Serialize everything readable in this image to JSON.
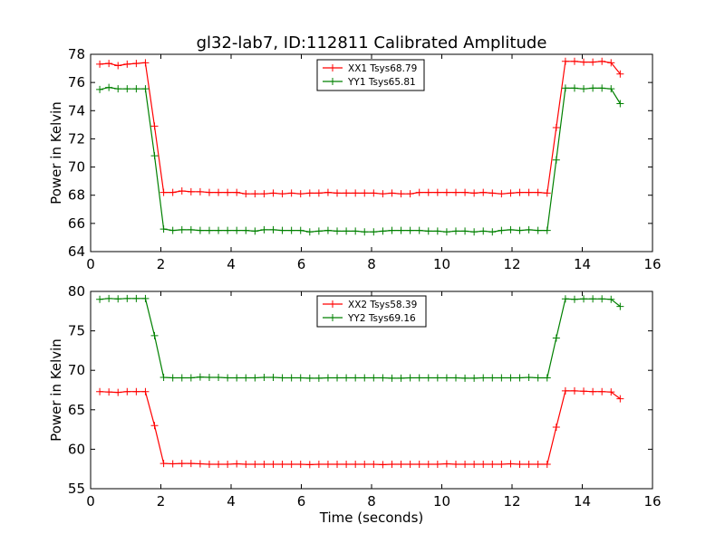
{
  "figure": {
    "title": "gl32-lab7, ID:112811 Calibrated Amplitude"
  },
  "chart_data": [
    {
      "type": "line",
      "title": "gl32-lab7, ID:112811 Calibrated Amplitude",
      "xlabel": "",
      "ylabel": "Power in Kelvin",
      "xlim": [
        0,
        16
      ],
      "ylim": [
        64,
        78
      ],
      "xticks": [
        "0",
        "2",
        "4",
        "6",
        "8",
        "10",
        "12",
        "14",
        "16"
      ],
      "yticks": [
        "64",
        "66",
        "68",
        "70",
        "72",
        "74",
        "76",
        "78"
      ],
      "grid": false,
      "legend": "top-center",
      "marker": "plus",
      "x": [
        0.26,
        0.52,
        0.78,
        1.04,
        1.3,
        1.56,
        1.82,
        2.08,
        2.34,
        2.6,
        2.86,
        3.12,
        3.38,
        3.64,
        3.9,
        4.16,
        4.42,
        4.68,
        4.94,
        5.2,
        5.46,
        5.72,
        5.98,
        6.24,
        6.5,
        6.76,
        7.02,
        7.28,
        7.54,
        7.8,
        8.06,
        8.32,
        8.58,
        8.84,
        9.1,
        9.36,
        9.62,
        9.88,
        10.14,
        10.4,
        10.66,
        10.92,
        11.18,
        11.44,
        11.7,
        11.96,
        12.22,
        12.48,
        12.74,
        13.0,
        13.26,
        13.52,
        13.78,
        14.04,
        14.3,
        14.56,
        14.82,
        15.08
      ],
      "series": [
        {
          "name": "XX1 Tsys68.79",
          "color": "#ff0000",
          "values": [
            77.3,
            77.35,
            77.2,
            77.3,
            77.35,
            77.4,
            72.9,
            68.2,
            68.2,
            68.3,
            68.25,
            68.25,
            68.2,
            68.2,
            68.2,
            68.2,
            68.1,
            68.1,
            68.1,
            68.15,
            68.1,
            68.15,
            68.1,
            68.15,
            68.15,
            68.2,
            68.15,
            68.15,
            68.15,
            68.15,
            68.15,
            68.1,
            68.15,
            68.1,
            68.1,
            68.2,
            68.2,
            68.2,
            68.2,
            68.2,
            68.2,
            68.15,
            68.2,
            68.15,
            68.1,
            68.15,
            68.2,
            68.2,
            68.2,
            68.15,
            72.8,
            77.5,
            77.5,
            77.45,
            77.45,
            77.5,
            77.4,
            76.6
          ]
        },
        {
          "name": "YY1 Tsys65.81",
          "color": "#008000",
          "values": [
            75.5,
            75.65,
            75.55,
            75.55,
            75.55,
            75.55,
            70.8,
            65.6,
            65.5,
            65.55,
            65.55,
            65.5,
            65.5,
            65.5,
            65.5,
            65.5,
            65.5,
            65.45,
            65.55,
            65.55,
            65.5,
            65.5,
            65.5,
            65.4,
            65.45,
            65.5,
            65.45,
            65.45,
            65.45,
            65.4,
            65.4,
            65.45,
            65.5,
            65.5,
            65.5,
            65.5,
            65.45,
            65.45,
            65.4,
            65.45,
            65.45,
            65.4,
            65.45,
            65.4,
            65.5,
            65.55,
            65.5,
            65.55,
            65.5,
            65.5,
            70.5,
            75.6,
            75.6,
            75.55,
            75.6,
            75.6,
            75.55,
            74.5
          ]
        }
      ]
    },
    {
      "type": "line",
      "title": "",
      "xlabel": "Time (seconds)",
      "ylabel": "Power in Kelvin",
      "xlim": [
        0,
        16
      ],
      "ylim": [
        55,
        80
      ],
      "xticks": [
        "0",
        "2",
        "4",
        "6",
        "8",
        "10",
        "12",
        "14",
        "16"
      ],
      "yticks": [
        "55",
        "60",
        "65",
        "70",
        "75",
        "80"
      ],
      "grid": false,
      "legend": "top-center",
      "marker": "plus",
      "x": [
        0.26,
        0.52,
        0.78,
        1.04,
        1.3,
        1.56,
        1.82,
        2.08,
        2.34,
        2.6,
        2.86,
        3.12,
        3.38,
        3.64,
        3.9,
        4.16,
        4.42,
        4.68,
        4.94,
        5.2,
        5.46,
        5.72,
        5.98,
        6.24,
        6.5,
        6.76,
        7.02,
        7.28,
        7.54,
        7.8,
        8.06,
        8.32,
        8.58,
        8.84,
        9.1,
        9.36,
        9.62,
        9.88,
        10.14,
        10.4,
        10.66,
        10.92,
        11.18,
        11.44,
        11.7,
        11.96,
        12.22,
        12.48,
        12.74,
        13.0,
        13.26,
        13.52,
        13.78,
        14.04,
        14.3,
        14.56,
        14.82,
        15.08
      ],
      "series": [
        {
          "name": "XX2 Tsys58.39",
          "color": "#ff0000",
          "values": [
            67.3,
            67.25,
            67.2,
            67.3,
            67.3,
            67.3,
            63.0,
            58.2,
            58.15,
            58.2,
            58.2,
            58.15,
            58.1,
            58.1,
            58.1,
            58.15,
            58.1,
            58.1,
            58.1,
            58.1,
            58.1,
            58.1,
            58.1,
            58.05,
            58.1,
            58.1,
            58.1,
            58.1,
            58.1,
            58.1,
            58.1,
            58.05,
            58.1,
            58.1,
            58.1,
            58.1,
            58.1,
            58.1,
            58.15,
            58.1,
            58.1,
            58.1,
            58.1,
            58.1,
            58.1,
            58.15,
            58.1,
            58.1,
            58.1,
            58.1,
            62.8,
            67.4,
            67.4,
            67.35,
            67.3,
            67.3,
            67.25,
            66.4
          ]
        },
        {
          "name": "YY2 Tsys69.16",
          "color": "#008000",
          "values": [
            79.0,
            79.1,
            79.05,
            79.1,
            79.1,
            79.1,
            74.4,
            69.1,
            69.05,
            69.05,
            69.05,
            69.15,
            69.1,
            69.1,
            69.05,
            69.05,
            69.05,
            69.05,
            69.1,
            69.1,
            69.05,
            69.05,
            69.05,
            69.0,
            69.0,
            69.05,
            69.05,
            69.05,
            69.05,
            69.05,
            69.05,
            69.05,
            69.0,
            69.0,
            69.05,
            69.05,
            69.05,
            69.05,
            69.05,
            69.05,
            69.0,
            69.0,
            69.05,
            69.05,
            69.05,
            69.05,
            69.05,
            69.1,
            69.05,
            69.05,
            74.1,
            79.05,
            79.0,
            79.05,
            79.05,
            79.05,
            79.0,
            78.1
          ]
        }
      ]
    }
  ]
}
